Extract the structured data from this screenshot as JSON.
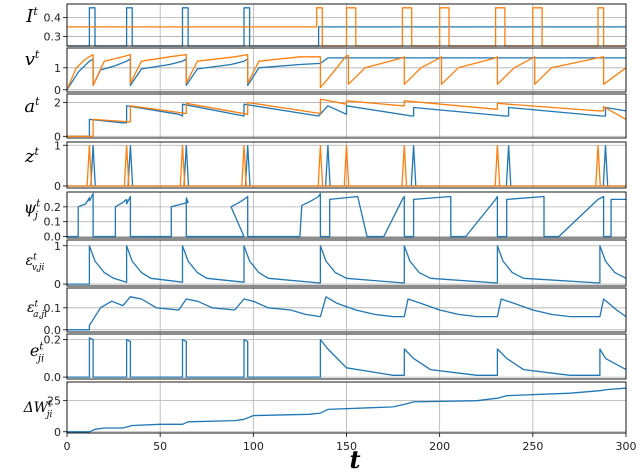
{
  "chart_data": {
    "type": "line",
    "x_axis": {
      "label": "t",
      "range": [
        0,
        300
      ],
      "ticks": [
        0,
        50,
        100,
        150,
        200,
        250,
        300
      ]
    },
    "grid": true,
    "colors": {
      "neuron_i": "#1f77b4",
      "neuron_j": "#ff7f0e"
    },
    "panels": [
      {
        "id": "I",
        "ylabel": "I^t",
        "yrange": [
          0.25,
          0.47
        ],
        "yticks": [
          0.3,
          0.4
        ],
        "ytick_labels": [
          "0.3",
          "0.4"
        ],
        "series": [
          {
            "color": "#1f77b4",
            "x": [
              0,
              12,
              12,
              15,
              15,
              32,
              32,
              35,
              35,
              62,
              62,
              65,
              65,
              95,
              95,
              98,
              98,
              135,
              135,
              300
            ],
            "y": [
              0.25,
              0.25,
              0.45,
              0.45,
              0.25,
              0.25,
              0.45,
              0.45,
              0.25,
              0.25,
              0.45,
              0.45,
              0.25,
              0.25,
              0.45,
              0.45,
              0.25,
              0.25,
              0.35,
              0.35
            ]
          },
          {
            "color": "#ff7f0e",
            "x": [
              0,
              134,
              134,
              137,
              137,
              150,
              150,
              155,
              155,
              180,
              180,
              185,
              185,
              200,
              200,
              205,
              205,
              230,
              230,
              235,
              235,
              250,
              250,
              255,
              255,
              285,
              285,
              288,
              288,
              300
            ],
            "y": [
              0.35,
              0.35,
              0.45,
              0.45,
              0.25,
              0.25,
              0.45,
              0.45,
              0.25,
              0.25,
              0.45,
              0.45,
              0.25,
              0.25,
              0.45,
              0.45,
              0.25,
              0.25,
              0.45,
              0.45,
              0.25,
              0.25,
              0.45,
              0.45,
              0.25,
              0.25,
              0.45,
              0.45,
              0.25,
              0.25
            ]
          }
        ]
      },
      {
        "id": "v",
        "ylabel": "v^t",
        "yrange": [
          -0.1,
          1.9
        ],
        "yticks": [
          0,
          1
        ],
        "ytick_labels": [
          "0",
          "1"
        ],
        "series": [
          {
            "color": "#1f77b4",
            "x": [
              0,
              6,
              12,
              14,
              14,
              18,
              26,
              32,
              34,
              34,
              40,
              55,
              62,
              64,
              64,
              70,
              88,
              95,
              97,
              97,
              103,
              125,
              136,
              140,
              150,
              170,
              185,
              186,
              200,
              222,
              236,
              237,
              250,
              270,
              287,
              289,
              300
            ],
            "y": [
              0,
              0.8,
              1.3,
              1.4,
              0.2,
              0.9,
              1.1,
              1.3,
              1.4,
              0.2,
              0.95,
              1.15,
              1.3,
              1.4,
              0.2,
              0.95,
              1.15,
              1.3,
              1.4,
              0.2,
              1.0,
              1.15,
              1.2,
              1.45,
              1.45,
              1.45,
              1.45,
              1.45,
              1.45,
              1.45,
              1.45,
              1.45,
              1.45,
              1.45,
              1.45,
              1.45,
              1.45
            ]
          },
          {
            "color": "#ff7f0e",
            "x": [
              0,
              5,
              10,
              14,
              14,
              20,
              30,
              34,
              34,
              40,
              55,
              64,
              64,
              70,
              90,
              97,
              97,
              103,
              125,
              136,
              136,
              140,
              150,
              151,
              151,
              160,
              180,
              181,
              181,
              190,
              200,
              201,
              201,
              210,
              230,
              231,
              231,
              240,
              250,
              251,
              251,
              260,
              285,
              288,
              288,
              300
            ],
            "y": [
              0,
              1.0,
              1.4,
              1.6,
              0.2,
              1.3,
              1.5,
              1.6,
              0.3,
              1.3,
              1.5,
              1.6,
              0.3,
              1.3,
              1.5,
              1.6,
              0.3,
              1.3,
              1.5,
              1.5,
              0.1,
              0.5,
              1.55,
              1.55,
              0.25,
              1.0,
              1.45,
              1.5,
              0.25,
              1.0,
              1.45,
              1.5,
              0.25,
              1.0,
              1.45,
              1.5,
              0.25,
              1.0,
              1.45,
              1.5,
              0.25,
              1.0,
              1.45,
              1.5,
              0.25,
              1.0
            ]
          }
        ]
      },
      {
        "id": "a",
        "ylabel": "a^t",
        "yrange": [
          -0.1,
          2.5
        ],
        "yticks": [
          0,
          2
        ],
        "ytick_labels": [
          "0",
          "2"
        ],
        "series": [
          {
            "color": "#1f77b4",
            "x": [
              0,
              12,
              12,
              30,
              32,
              32,
              60,
              62,
              62,
              95,
              95,
              135,
              140,
              150,
              150,
              185,
              186,
              186,
              235,
              237,
              237,
              287,
              289,
              289,
              300
            ],
            "y": [
              0,
              0,
              1.0,
              0.8,
              0.8,
              1.8,
              1.3,
              1.2,
              1.9,
              1.2,
              1.9,
              1.2,
              1.8,
              1.3,
              1.8,
              1.2,
              1.2,
              1.7,
              1.2,
              1.2,
              1.7,
              1.2,
              1.2,
              1.7,
              1.5
            ]
          },
          {
            "color": "#ff7f0e",
            "x": [
              0,
              14,
              14,
              34,
              34,
              64,
              64,
              97,
              97,
              136,
              136,
              150,
              150,
              180,
              181,
              181,
              230,
              231,
              231,
              285,
              288,
              288,
              300
            ],
            "y": [
              0,
              0,
              1.0,
              0.85,
              1.8,
              1.35,
              1.95,
              1.3,
              2.0,
              1.35,
              2.2,
              1.9,
              2.1,
              1.8,
              1.8,
              2.1,
              1.6,
              1.6,
              1.95,
              1.5,
              1.5,
              1.75,
              1.0
            ]
          }
        ]
      },
      {
        "id": "z",
        "ylabel": "z^t",
        "yrange": [
          -0.05,
          1.08
        ],
        "yticks": [
          0,
          1
        ],
        "ytick_labels": [
          "0",
          "1"
        ],
        "series": [
          {
            "color": "#1f77b4",
            "spikes": [
              14,
              34,
              64,
              97,
              140,
              186,
              237,
              289
            ]
          },
          {
            "color": "#ff7f0e",
            "spikes": [
              12,
              32,
              62,
              95,
              136,
              150,
              181,
              231,
              285
            ]
          }
        ]
      },
      {
        "id": "psi",
        "ylabel": "ψ_j^t",
        "yrange": [
          -0.01,
          0.3
        ],
        "yticks": [
          0,
          0.1,
          0.2
        ],
        "ytick_labels": [
          "0.0",
          "0.1",
          "0.2"
        ],
        "series": [
          {
            "color": "#1f77b4",
            "x": [
              0,
              6,
              6,
              10,
              12,
              12,
              14,
              14,
              26,
              26,
              30,
              32,
              32,
              34,
              34,
              56,
              56,
              65,
              64,
              64,
              95,
              88,
              91,
              95,
              95,
              97,
              97,
              125,
              126,
              131,
              135,
              136,
              136,
              141,
              141,
              156,
              156,
              161,
              170,
              180,
              181,
              181,
              186,
              186,
              206,
              206,
              214,
              230,
              231,
              231,
              236,
              236,
              256,
              256,
              264,
              285,
              288,
              288,
              292,
              292,
              300
            ],
            "y": [
              0,
              0,
              0.2,
              0.22,
              0.26,
              0.24,
              0.29,
              0,
              0,
              0.2,
              0.23,
              0.25,
              0.22,
              0.27,
              0,
              0,
              0.2,
              0.23,
              0.26,
              0,
              0,
              0.2,
              0.22,
              0.25,
              0.25,
              0.27,
              0,
              0,
              0.21,
              0.24,
              0.27,
              0.29,
              0,
              0,
              0.25,
              0.27,
              0.27,
              0,
              0,
              0.25,
              0.27,
              0,
              0,
              0.25,
              0.27,
              0,
              0,
              0.25,
              0.27,
              0,
              0,
              0.25,
              0.27,
              0,
              0,
              0.25,
              0.27,
              0,
              0,
              0.25,
              0.25
            ]
          }
        ]
      },
      {
        "id": "eps_v",
        "ylabel": "ε_v,ji^t",
        "yrange": [
          -0.05,
          1.15
        ],
        "yticks": [
          0,
          1
        ],
        "ytick_labels": [
          "0",
          "1"
        ],
        "series": [
          {
            "color": "#1f77b4",
            "x": [
              0,
              12,
              12,
              15,
              20,
              25,
              32,
              32,
              35,
              40,
              45,
              62,
              62,
              65,
              70,
              75,
              95,
              95,
              98,
              103,
              108,
              135,
              136,
              136,
              139,
              144,
              150,
              180,
              181,
              181,
              184,
              189,
              195,
              230,
              231,
              231,
              234,
              239,
              245,
              285,
              286,
              286,
              289,
              294,
              300
            ],
            "y": [
              0,
              0,
              1.0,
              0.6,
              0.3,
              0.15,
              0.05,
              1.0,
              0.6,
              0.3,
              0.15,
              0.05,
              1.0,
              0.6,
              0.3,
              0.15,
              0.05,
              1.0,
              0.6,
              0.3,
              0.15,
              0.03,
              0.03,
              1.0,
              0.6,
              0.3,
              0.15,
              0.03,
              0.03,
              1.0,
              0.6,
              0.3,
              0.15,
              0.03,
              0.03,
              1.0,
              0.6,
              0.3,
              0.15,
              0.03,
              0.03,
              1.0,
              0.6,
              0.3,
              0.15
            ]
          }
        ]
      },
      {
        "id": "eps_a",
        "ylabel": "ε_a,ji^t",
        "yrange": [
          -0.01,
          0.19
        ],
        "yticks": [
          0,
          0.1
        ],
        "ytick_labels": [
          "0.0",
          "0.1"
        ],
        "series": [
          {
            "color": "#1f77b4",
            "x": [
              0,
              12,
              12,
              18,
              24,
              30,
              34,
              40,
              48,
              60,
              64,
              70,
              78,
              90,
              95,
              100,
              108,
              120,
              128,
              136,
              139,
              145,
              155,
              165,
              175,
              181,
              183,
              190,
              200,
              210,
              220,
              231,
              233,
              240,
              250,
              260,
              270,
              286,
              288,
              295,
              300
            ],
            "y": [
              0,
              0,
              0.02,
              0.1,
              0.13,
              0.11,
              0.15,
              0.14,
              0.1,
              0.09,
              0.14,
              0.13,
              0.1,
              0.09,
              0.14,
              0.13,
              0.1,
              0.09,
              0.07,
              0.06,
              0.15,
              0.12,
              0.09,
              0.07,
              0.06,
              0.06,
              0.14,
              0.12,
              0.09,
              0.07,
              0.06,
              0.06,
              0.14,
              0.12,
              0.09,
              0.07,
              0.06,
              0.06,
              0.14,
              0.09,
              0.06
            ]
          }
        ]
      },
      {
        "id": "e",
        "ylabel": "e_ji^t",
        "yrange": [
          -0.01,
          0.23
        ],
        "yticks": [
          0,
          0.2
        ],
        "ytick_labels": [
          "0.0",
          "0.2"
        ],
        "series": [
          {
            "color": "#1f77b4",
            "x": [
              0,
              12,
              12,
              14,
              14,
              32,
              32,
              34,
              34,
              62,
              62,
              64,
              64,
              95,
              95,
              97,
              97,
              136,
              136,
              140,
              150,
              175,
              181,
              181,
              186,
              195,
              220,
              231,
              231,
              236,
              245,
              270,
              286,
              286,
              289,
              300
            ],
            "y": [
              0,
              0,
              0.21,
              0.2,
              0,
              0,
              0.2,
              0.19,
              0,
              0,
              0.2,
              0.19,
              0,
              0,
              0.2,
              0.19,
              0,
              0,
              0.2,
              0.15,
              0.05,
              0.01,
              0.01,
              0.15,
              0.1,
              0.04,
              0.01,
              0.01,
              0.15,
              0.1,
              0.04,
              0.01,
              0.01,
              0.15,
              0.1,
              0.04
            ]
          }
        ]
      },
      {
        "id": "dW",
        "ylabel": "ΔW_ji^t",
        "yrange": [
          -1,
          40
        ],
        "yticks": [
          0,
          25
        ],
        "ytick_labels": [
          "0",
          "25"
        ],
        "series": [
          {
            "color": "#1f77b4",
            "x": [
              0,
              12,
              15,
              20,
              30,
              35,
              50,
              62,
              65,
              90,
              95,
              100,
              130,
              136,
              140,
              175,
              181,
              186,
              220,
              231,
              236,
              270,
              286,
              290,
              300
            ],
            "y": [
              0,
              0,
              2,
              3,
              3,
              5,
              6,
              6,
              8,
              9,
              10,
              13,
              14,
              15,
              18,
              20,
              22,
              24,
              25,
              27,
              29,
              31,
              33,
              34,
              35
            ]
          }
        ]
      }
    ]
  }
}
